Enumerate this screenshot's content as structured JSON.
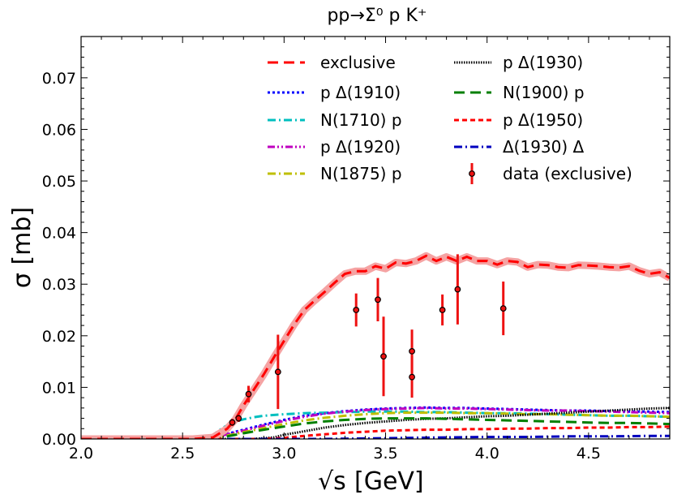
{
  "chart_data": {
    "type": "line",
    "title": "pp→Σ⁰ p K⁺",
    "xlabel": "[GeV]",
    "xlabel_symbol": "√s",
    "ylabel": "σ [mb]",
    "xlim": [
      2.0,
      4.9
    ],
    "ylim": [
      0.0,
      0.078
    ],
    "xticks": [
      2.0,
      2.5,
      3.0,
      3.5,
      4.0,
      4.5
    ],
    "xtick_labels": [
      "2.0",
      "2.5",
      "3.0",
      "3.5",
      "4.0",
      "4.5"
    ],
    "yticks": [
      0.0,
      0.01,
      0.02,
      0.03,
      0.04,
      0.05,
      0.06,
      0.07
    ],
    "ytick_labels": [
      "0.00",
      "0.01",
      "0.02",
      "0.03",
      "0.04",
      "0.05",
      "0.06",
      "0.07"
    ],
    "series": [
      {
        "name": "exclusive",
        "color": "#ff0000",
        "style": "dashed-band",
        "x": [
          2.0,
          2.55,
          2.65,
          2.72,
          2.76,
          2.8,
          2.85,
          2.9,
          2.95,
          3.0,
          3.05,
          3.1,
          3.15,
          3.2,
          3.25,
          3.3,
          3.35,
          3.4,
          3.45,
          3.5,
          3.55,
          3.6,
          3.65,
          3.7,
          3.75,
          3.8,
          3.85,
          3.9,
          3.95,
          4.0,
          4.05,
          4.1,
          4.15,
          4.2,
          4.25,
          4.3,
          4.35,
          4.4,
          4.45,
          4.5,
          4.55,
          4.6,
          4.65,
          4.7,
          4.75,
          4.8,
          4.85,
          4.9
        ],
        "y": [
          0.0,
          0.0,
          0.0003,
          0.002,
          0.0038,
          0.0065,
          0.0095,
          0.0125,
          0.0158,
          0.019,
          0.0222,
          0.025,
          0.0268,
          0.0285,
          0.0303,
          0.032,
          0.0325,
          0.0325,
          0.0335,
          0.033,
          0.0342,
          0.034,
          0.0345,
          0.0355,
          0.0345,
          0.0353,
          0.0345,
          0.0353,
          0.0345,
          0.0345,
          0.0338,
          0.0345,
          0.0343,
          0.0333,
          0.0338,
          0.0337,
          0.0333,
          0.0332,
          0.0337,
          0.0336,
          0.0335,
          0.0333,
          0.0332,
          0.0335,
          0.0326,
          0.032,
          0.0323,
          0.0312
        ]
      },
      {
        "name": "p Δ(1910)",
        "color": "#0000ff",
        "style": "dotted",
        "x": [
          2.0,
          2.62,
          2.7,
          2.8,
          2.9,
          3.0,
          3.1,
          3.2,
          3.3,
          3.4,
          3.5,
          3.6,
          3.7,
          3.8,
          3.9,
          4.0,
          4.1,
          4.2,
          4.3,
          4.4,
          4.5,
          4.6,
          4.7,
          4.8,
          4.9
        ],
        "y": [
          0.0,
          0.0,
          0.0008,
          0.0018,
          0.0028,
          0.0037,
          0.0045,
          0.005,
          0.0054,
          0.0057,
          0.0059,
          0.006,
          0.0061,
          0.006,
          0.006,
          0.0059,
          0.0058,
          0.0057,
          0.0056,
          0.0055,
          0.0055,
          0.0054,
          0.0053,
          0.0053,
          0.0052
        ]
      },
      {
        "name": "N(1710) p",
        "color": "#00bfbf",
        "style": "dashdot",
        "x": [
          2.0,
          2.6,
          2.65,
          2.7,
          2.75,
          2.8,
          2.85,
          2.9,
          3.0,
          3.1,
          3.2,
          3.3,
          3.4,
          3.5,
          3.6,
          3.7,
          3.8,
          3.9,
          4.0,
          4.1,
          4.2,
          4.3,
          4.4,
          4.5,
          4.6,
          4.7,
          4.8,
          4.9
        ],
        "y": [
          0.0,
          0.0,
          0.0008,
          0.0022,
          0.0033,
          0.0038,
          0.0042,
          0.0045,
          0.0048,
          0.005,
          0.0051,
          0.0052,
          0.0053,
          0.0053,
          0.0053,
          0.0052,
          0.0052,
          0.0051,
          0.005,
          0.005,
          0.0049,
          0.0048,
          0.0047,
          0.0046,
          0.0045,
          0.0045,
          0.0044,
          0.0043
        ]
      },
      {
        "name": "p Δ(1920)",
        "color": "#bf00bf",
        "style": "dashdotdot",
        "x": [
          2.0,
          2.62,
          2.7,
          2.8,
          2.9,
          3.0,
          3.1,
          3.2,
          3.3,
          3.4,
          3.5,
          3.6,
          3.7,
          3.8,
          3.9,
          4.0,
          4.1,
          4.2,
          4.3,
          4.4,
          4.5,
          4.6,
          4.7,
          4.8,
          4.9
        ],
        "y": [
          0.0,
          0.0,
          0.0007,
          0.0016,
          0.0026,
          0.0035,
          0.0043,
          0.0049,
          0.0053,
          0.0056,
          0.0058,
          0.0059,
          0.006,
          0.0059,
          0.0059,
          0.0058,
          0.0057,
          0.0056,
          0.0055,
          0.0055,
          0.0054,
          0.0053,
          0.0052,
          0.0051,
          0.005
        ]
      },
      {
        "name": "N(1875) p",
        "color": "#bfbf00",
        "style": "dashdot",
        "x": [
          2.0,
          2.64,
          2.7,
          2.8,
          2.9,
          3.0,
          3.1,
          3.2,
          3.3,
          3.4,
          3.5,
          3.6,
          3.7,
          3.8,
          3.9,
          4.0,
          4.1,
          4.2,
          4.3,
          4.4,
          4.5,
          4.6,
          4.7,
          4.8,
          4.9
        ],
        "y": [
          0.0,
          0.0,
          0.0005,
          0.0013,
          0.0021,
          0.0029,
          0.0036,
          0.0041,
          0.0045,
          0.0048,
          0.005,
          0.0051,
          0.0051,
          0.0051,
          0.005,
          0.005,
          0.0049,
          0.0048,
          0.0048,
          0.0047,
          0.0046,
          0.0045,
          0.0045,
          0.0044,
          0.0043
        ]
      },
      {
        "name": "p Δ(1930)",
        "color": "#000000",
        "style": "dense-dotted",
        "x": [
          2.0,
          2.85,
          2.95,
          3.0,
          3.1,
          3.2,
          3.3,
          3.4,
          3.5,
          3.6,
          3.7,
          3.8,
          3.9,
          4.0,
          4.1,
          4.2,
          4.3,
          4.4,
          4.5,
          4.6,
          4.7,
          4.8,
          4.9
        ],
        "y": [
          0.0,
          0.0,
          0.0003,
          0.0008,
          0.0015,
          0.0022,
          0.0027,
          0.0031,
          0.0034,
          0.0037,
          0.0039,
          0.004,
          0.0042,
          0.0044,
          0.0045,
          0.0047,
          0.0049,
          0.0051,
          0.0053,
          0.0055,
          0.0057,
          0.0059,
          0.006
        ]
      },
      {
        "name": "N(1900) p",
        "color": "#007f00",
        "style": "dashed",
        "x": [
          2.0,
          2.66,
          2.72,
          2.8,
          2.9,
          3.0,
          3.1,
          3.2,
          3.3,
          3.4,
          3.5,
          3.6,
          3.7,
          3.8,
          3.9,
          4.0,
          4.1,
          4.2,
          4.3,
          4.4,
          4.5,
          4.6,
          4.7,
          4.8,
          4.9
        ],
        "y": [
          0.0,
          0.0,
          0.0005,
          0.0011,
          0.0018,
          0.0024,
          0.003,
          0.0034,
          0.0037,
          0.0039,
          0.004,
          0.004,
          0.004,
          0.0039,
          0.0038,
          0.0037,
          0.0036,
          0.0035,
          0.0034,
          0.0033,
          0.0032,
          0.0031,
          0.0031,
          0.003,
          0.0029
        ]
      },
      {
        "name": "p Δ(1950)",
        "color": "#ff0000",
        "style": "short-dashed",
        "x": [
          2.0,
          2.9,
          3.0,
          3.1,
          3.2,
          3.3,
          3.4,
          3.5,
          3.6,
          3.7,
          3.8,
          3.9,
          4.0,
          4.1,
          4.2,
          4.3,
          4.4,
          4.5,
          4.6,
          4.7,
          4.8,
          4.9
        ],
        "y": [
          0.0,
          0.0,
          0.0002,
          0.0006,
          0.0009,
          0.0012,
          0.0014,
          0.0016,
          0.0017,
          0.0018,
          0.0018,
          0.0019,
          0.0019,
          0.002,
          0.002,
          0.0021,
          0.0021,
          0.0022,
          0.0022,
          0.0023,
          0.0023,
          0.0024
        ]
      },
      {
        "name": "Δ(1930) Δ",
        "color": "#0000bf",
        "style": "dashdot",
        "x": [
          2.0,
          3.2,
          3.4,
          3.6,
          3.8,
          4.0,
          4.2,
          4.4,
          4.6,
          4.8,
          4.9
        ],
        "y": [
          0.0,
          0.0,
          0.0001,
          0.0002,
          0.0003,
          0.0004,
          0.0004,
          0.0005,
          0.0005,
          0.0006,
          0.0006
        ]
      }
    ],
    "data_points": {
      "name": "data (exclusive)",
      "color": "#ee1111",
      "points": [
        {
          "x": 2.745,
          "y": 0.0032,
          "err": 0.0007
        },
        {
          "x": 2.776,
          "y": 0.004,
          "err": 0.0007
        },
        {
          "x": 2.825,
          "y": 0.0087,
          "err": 0.0016
        },
        {
          "x": 2.97,
          "y": 0.013,
          "err": 0.0072
        },
        {
          "x": 3.355,
          "y": 0.025,
          "err": 0.0032
        },
        {
          "x": 3.462,
          "y": 0.027,
          "err": 0.0042
        },
        {
          "x": 3.49,
          "y": 0.016,
          "err": 0.0077
        },
        {
          "x": 3.63,
          "y": 0.017,
          "err": 0.0042
        },
        {
          "x": 3.63,
          "y": 0.012,
          "err": 0.004
        },
        {
          "x": 3.78,
          "y": 0.025,
          "err": 0.003
        },
        {
          "x": 3.855,
          "y": 0.029,
          "err": 0.0068
        },
        {
          "x": 4.08,
          "y": 0.0253,
          "err": 0.0052
        }
      ]
    },
    "legend": {
      "placement": "top-right",
      "columns": [
        [
          "exclusive",
          "p Δ(1910)",
          "N(1710) p",
          "p Δ(1920)",
          "N(1875) p"
        ],
        [
          "p Δ(1930)",
          "N(1900) p",
          "p Δ(1950)",
          "Δ(1930) Δ",
          "data (exclusive)"
        ]
      ]
    }
  }
}
